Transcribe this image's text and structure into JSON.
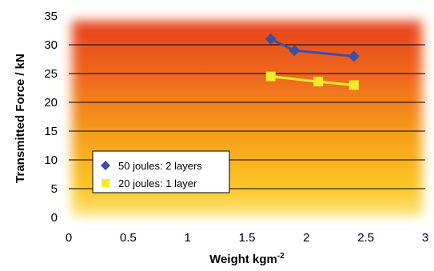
{
  "chart_data": {
    "type": "line",
    "title": "",
    "xlabel": "Weight kgm",
    "xlabel_superscript": "-2",
    "ylabel": "Transmitted Force / kN",
    "xlim": [
      0,
      3
    ],
    "ylim": [
      0,
      35
    ],
    "x_ticks": [
      "0",
      "0.5",
      "1",
      "1.5",
      "2",
      "2.5",
      "3"
    ],
    "y_ticks": [
      "0",
      "5",
      "10",
      "15",
      "20",
      "25",
      "30",
      "35"
    ],
    "grid": "horizontal",
    "legend_position": "bottom-left",
    "series": [
      {
        "name": "50 joules: 2 layers",
        "color": "#3b4fa8",
        "marker": "diamond",
        "x": [
          1.7,
          1.9,
          2.4
        ],
        "y": [
          31,
          29,
          28
        ]
      },
      {
        "name": "20 joules: 1 layer",
        "color": "#f2ea2a",
        "marker": "square",
        "x": [
          1.7,
          2.1,
          2.4
        ],
        "y": [
          24.5,
          23.6,
          23
        ]
      }
    ]
  }
}
